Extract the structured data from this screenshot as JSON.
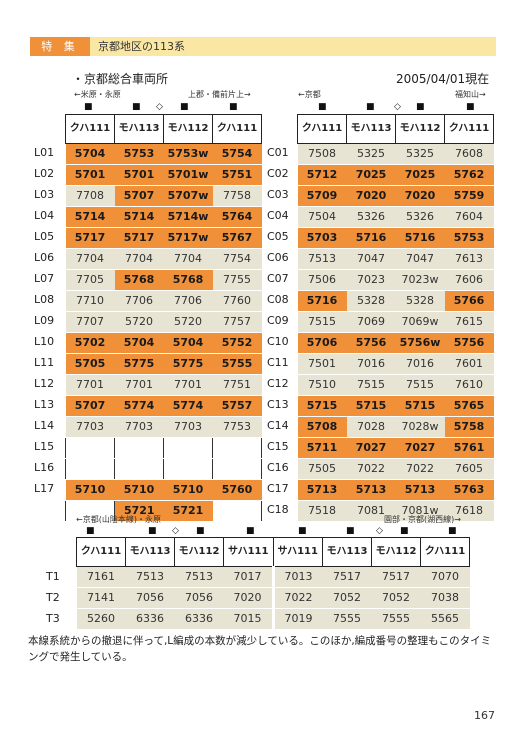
{
  "header": {
    "tokushu": "特 集",
    "title": "京都地区の113系"
  },
  "subtitle": "・京都総合車両所",
  "date": "2005/04/01現在",
  "left_block": {
    "dir_left": "←米原・永原",
    "dir_right": "上郡・備前片上→",
    "marks": [
      "■",
      "■",
      "◇",
      "■",
      "■"
    ],
    "headers": [
      "クハ111",
      "モハ113",
      "モハ112",
      "クハ111"
    ],
    "rows": [
      {
        "label": "L01",
        "cells": [
          {
            "t": "5704",
            "c": "o"
          },
          {
            "t": "5753",
            "c": "o"
          },
          {
            "t": "5753w",
            "c": "o"
          },
          {
            "t": "5754",
            "c": "o"
          }
        ]
      },
      {
        "label": "L02",
        "cells": [
          {
            "t": "5701",
            "c": "o"
          },
          {
            "t": "5701",
            "c": "o"
          },
          {
            "t": "5701w",
            "c": "o"
          },
          {
            "t": "5751",
            "c": "o"
          }
        ]
      },
      {
        "label": "L03",
        "cells": [
          {
            "t": "7708",
            "c": "g"
          },
          {
            "t": "5707",
            "c": "o"
          },
          {
            "t": "5707w",
            "c": "o"
          },
          {
            "t": "7758",
            "c": "g"
          }
        ]
      },
      {
        "label": "L04",
        "cells": [
          {
            "t": "5714",
            "c": "o"
          },
          {
            "t": "5714",
            "c": "o"
          },
          {
            "t": "5714w",
            "c": "o"
          },
          {
            "t": "5764",
            "c": "o"
          }
        ]
      },
      {
        "label": "L05",
        "cells": [
          {
            "t": "5717",
            "c": "o"
          },
          {
            "t": "5717",
            "c": "o"
          },
          {
            "t": "5717w",
            "c": "o"
          },
          {
            "t": "5767",
            "c": "o"
          }
        ]
      },
      {
        "label": "L06",
        "cells": [
          {
            "t": "7704",
            "c": "g"
          },
          {
            "t": "7704",
            "c": "g"
          },
          {
            "t": "7704",
            "c": "g"
          },
          {
            "t": "7754",
            "c": "g"
          }
        ]
      },
      {
        "label": "L07",
        "cells": [
          {
            "t": "7705",
            "c": "g"
          },
          {
            "t": "5768",
            "c": "o"
          },
          {
            "t": "5768",
            "c": "o"
          },
          {
            "t": "7755",
            "c": "g"
          }
        ]
      },
      {
        "label": "L08",
        "cells": [
          {
            "t": "7710",
            "c": "g"
          },
          {
            "t": "7706",
            "c": "g"
          },
          {
            "t": "7706",
            "c": "g"
          },
          {
            "t": "7760",
            "c": "g"
          }
        ]
      },
      {
        "label": "L09",
        "cells": [
          {
            "t": "7707",
            "c": "g"
          },
          {
            "t": "5720",
            "c": "g"
          },
          {
            "t": "5720",
            "c": "g"
          },
          {
            "t": "7757",
            "c": "g"
          }
        ]
      },
      {
        "label": "L10",
        "cells": [
          {
            "t": "5702",
            "c": "o"
          },
          {
            "t": "5704",
            "c": "o"
          },
          {
            "t": "5704",
            "c": "o"
          },
          {
            "t": "5752",
            "c": "o"
          }
        ]
      },
      {
        "label": "L11",
        "cells": [
          {
            "t": "5705",
            "c": "o"
          },
          {
            "t": "5775",
            "c": "o"
          },
          {
            "t": "5775",
            "c": "o"
          },
          {
            "t": "5755",
            "c": "o"
          }
        ]
      },
      {
        "label": "L12",
        "cells": [
          {
            "t": "7701",
            "c": "g"
          },
          {
            "t": "7701",
            "c": "g"
          },
          {
            "t": "7701",
            "c": "g"
          },
          {
            "t": "7751",
            "c": "g"
          }
        ]
      },
      {
        "label": "L13",
        "cells": [
          {
            "t": "5707",
            "c": "o"
          },
          {
            "t": "5774",
            "c": "o"
          },
          {
            "t": "5774",
            "c": "o"
          },
          {
            "t": "5757",
            "c": "o"
          }
        ]
      },
      {
        "label": "L14",
        "cells": [
          {
            "t": "7703",
            "c": "g"
          },
          {
            "t": "7703",
            "c": "g"
          },
          {
            "t": "7703",
            "c": "g"
          },
          {
            "t": "7753",
            "c": "g"
          }
        ]
      },
      {
        "label": "L15",
        "cells": [
          {
            "t": "",
            "c": "e"
          },
          {
            "t": "",
            "c": "e"
          },
          {
            "t": "",
            "c": "e"
          },
          {
            "t": "",
            "c": "e"
          }
        ]
      },
      {
        "label": "L16",
        "cells": [
          {
            "t": "",
            "c": "e"
          },
          {
            "t": "",
            "c": "e"
          },
          {
            "t": "",
            "c": "e"
          },
          {
            "t": "",
            "c": "e"
          }
        ]
      },
      {
        "label": "L17",
        "cells": [
          {
            "t": "5710",
            "c": "o"
          },
          {
            "t": "5710",
            "c": "o"
          },
          {
            "t": "5710",
            "c": "o"
          },
          {
            "t": "5760",
            "c": "o"
          }
        ]
      },
      {
        "label": "",
        "cells": [
          {
            "t": "",
            "c": "e"
          },
          {
            "t": "5721",
            "c": "o"
          },
          {
            "t": "5721",
            "c": "o"
          },
          {
            "t": "",
            "c": "e"
          }
        ]
      }
    ]
  },
  "right_block": {
    "dir_left": "←京都",
    "dir_right": "福知山→",
    "marks": [
      "■",
      "■",
      "◇",
      "■",
      "■"
    ],
    "headers": [
      "クハ111",
      "モハ113",
      "モハ112",
      "クハ111"
    ],
    "rows": [
      {
        "label": "C01",
        "cells": [
          {
            "t": "7508",
            "c": "g"
          },
          {
            "t": "5325",
            "c": "g"
          },
          {
            "t": "5325",
            "c": "g"
          },
          {
            "t": "7608",
            "c": "g"
          }
        ]
      },
      {
        "label": "C02",
        "cells": [
          {
            "t": "5712",
            "c": "o"
          },
          {
            "t": "7025",
            "c": "o"
          },
          {
            "t": "7025",
            "c": "o"
          },
          {
            "t": "5762",
            "c": "o"
          }
        ]
      },
      {
        "label": "C03",
        "cells": [
          {
            "t": "5709",
            "c": "o"
          },
          {
            "t": "7020",
            "c": "o"
          },
          {
            "t": "7020",
            "c": "o"
          },
          {
            "t": "5759",
            "c": "o"
          }
        ]
      },
      {
        "label": "C04",
        "cells": [
          {
            "t": "7504",
            "c": "g"
          },
          {
            "t": "5326",
            "c": "g"
          },
          {
            "t": "5326",
            "c": "g"
          },
          {
            "t": "7604",
            "c": "g"
          }
        ]
      },
      {
        "label": "C05",
        "cells": [
          {
            "t": "5703",
            "c": "o"
          },
          {
            "t": "5716",
            "c": "o"
          },
          {
            "t": "5716",
            "c": "o"
          },
          {
            "t": "5753",
            "c": "o"
          }
        ]
      },
      {
        "label": "C06",
        "cells": [
          {
            "t": "7513",
            "c": "g"
          },
          {
            "t": "7047",
            "c": "g"
          },
          {
            "t": "7047",
            "c": "g"
          },
          {
            "t": "7613",
            "c": "g"
          }
        ]
      },
      {
        "label": "C07",
        "cells": [
          {
            "t": "7506",
            "c": "g"
          },
          {
            "t": "7023",
            "c": "g"
          },
          {
            "t": "7023w",
            "c": "g"
          },
          {
            "t": "7606",
            "c": "g"
          }
        ]
      },
      {
        "label": "C08",
        "cells": [
          {
            "t": "5716",
            "c": "o"
          },
          {
            "t": "5328",
            "c": "g"
          },
          {
            "t": "5328",
            "c": "g"
          },
          {
            "t": "5766",
            "c": "o"
          }
        ]
      },
      {
        "label": "C09",
        "cells": [
          {
            "t": "7515",
            "c": "g"
          },
          {
            "t": "7069",
            "c": "g"
          },
          {
            "t": "7069w",
            "c": "g"
          },
          {
            "t": "7615",
            "c": "g"
          }
        ]
      },
      {
        "label": "C10",
        "cells": [
          {
            "t": "5706",
            "c": "o"
          },
          {
            "t": "5756",
            "c": "o"
          },
          {
            "t": "5756w",
            "c": "o"
          },
          {
            "t": "5756",
            "c": "o"
          }
        ]
      },
      {
        "label": "C11",
        "cells": [
          {
            "t": "7501",
            "c": "g"
          },
          {
            "t": "7016",
            "c": "g"
          },
          {
            "t": "7016",
            "c": "g"
          },
          {
            "t": "7601",
            "c": "g"
          }
        ]
      },
      {
        "label": "C12",
        "cells": [
          {
            "t": "7510",
            "c": "g"
          },
          {
            "t": "7515",
            "c": "g"
          },
          {
            "t": "7515",
            "c": "g"
          },
          {
            "t": "7610",
            "c": "g"
          }
        ]
      },
      {
        "label": "C13",
        "cells": [
          {
            "t": "5715",
            "c": "o"
          },
          {
            "t": "5715",
            "c": "o"
          },
          {
            "t": "5715",
            "c": "o"
          },
          {
            "t": "5765",
            "c": "o"
          }
        ]
      },
      {
        "label": "C14",
        "cells": [
          {
            "t": "5708",
            "c": "o"
          },
          {
            "t": "7028",
            "c": "g"
          },
          {
            "t": "7028w",
            "c": "g"
          },
          {
            "t": "5758",
            "c": "o"
          }
        ]
      },
      {
        "label": "C15",
        "cells": [
          {
            "t": "5711",
            "c": "o"
          },
          {
            "t": "7027",
            "c": "o"
          },
          {
            "t": "7027",
            "c": "o"
          },
          {
            "t": "5761",
            "c": "o"
          }
        ]
      },
      {
        "label": "C16",
        "cells": [
          {
            "t": "7505",
            "c": "g"
          },
          {
            "t": "7022",
            "c": "g"
          },
          {
            "t": "7022",
            "c": "g"
          },
          {
            "t": "7605",
            "c": "g"
          }
        ]
      },
      {
        "label": "C17",
        "cells": [
          {
            "t": "5713",
            "c": "o"
          },
          {
            "t": "5713",
            "c": "o"
          },
          {
            "t": "5713",
            "c": "o"
          },
          {
            "t": "5763",
            "c": "o"
          }
        ]
      },
      {
        "label": "C18",
        "cells": [
          {
            "t": "7518",
            "c": "g"
          },
          {
            "t": "7081",
            "c": "g"
          },
          {
            "t": "7081w",
            "c": "g"
          },
          {
            "t": "7618",
            "c": "g"
          }
        ]
      }
    ]
  },
  "bottom_block": {
    "dir_left": "←京都(山陰本線)・永原",
    "dir_right": "園部・京都(湖西線)→",
    "marks": [
      "■",
      "■",
      "◇",
      "■",
      "■",
      "■",
      "■",
      "◇",
      "■",
      "■"
    ],
    "headers": [
      "クハ111",
      "モハ113",
      "モハ112",
      "サハ111",
      "サハ111",
      "モハ113",
      "モハ112",
      "クハ111"
    ],
    "rows": [
      {
        "label": "T1",
        "cells": [
          {
            "t": "7161",
            "c": "g"
          },
          {
            "t": "7513",
            "c": "g"
          },
          {
            "t": "7513",
            "c": "g"
          },
          {
            "t": "7017",
            "c": "g"
          },
          {
            "t": "7013",
            "c": "g"
          },
          {
            "t": "7517",
            "c": "g"
          },
          {
            "t": "7517",
            "c": "g"
          },
          {
            "t": "7070",
            "c": "g"
          }
        ]
      },
      {
        "label": "T2",
        "cells": [
          {
            "t": "7141",
            "c": "g"
          },
          {
            "t": "7056",
            "c": "g"
          },
          {
            "t": "7056",
            "c": "g"
          },
          {
            "t": "7020",
            "c": "g"
          },
          {
            "t": "7022",
            "c": "g"
          },
          {
            "t": "7052",
            "c": "g"
          },
          {
            "t": "7052",
            "c": "g"
          },
          {
            "t": "7038",
            "c": "g"
          }
        ]
      },
      {
        "label": "T3",
        "cells": [
          {
            "t": "5260",
            "c": "g"
          },
          {
            "t": "6336",
            "c": "g"
          },
          {
            "t": "6336",
            "c": "g"
          },
          {
            "t": "7015",
            "c": "g"
          },
          {
            "t": "7019",
            "c": "g"
          },
          {
            "t": "7555",
            "c": "g"
          },
          {
            "t": "7555",
            "c": "g"
          },
          {
            "t": "5565",
            "c": "g"
          }
        ]
      }
    ]
  },
  "footnote": "本線系統からの撤退に伴って,L編成の本数が減少している。このほか,編成番号の整理もこのタイミングで発生している。",
  "page_number": "167"
}
